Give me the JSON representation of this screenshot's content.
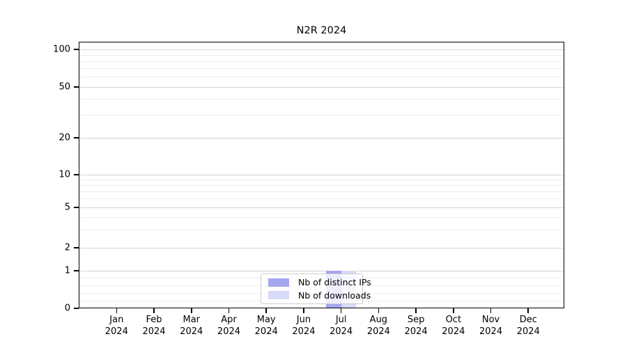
{
  "figure": {
    "background": "#ffffff"
  },
  "chart_data": {
    "type": "bar",
    "title": "N2R 2024",
    "categories": [
      "Jan 2024",
      "Feb 2024",
      "Mar 2024",
      "Apr 2024",
      "May 2024",
      "Jun 2024",
      "Jul 2024",
      "Aug 2024",
      "Sep 2024",
      "Oct 2024",
      "Nov 2024",
      "Dec 2024"
    ],
    "series": [
      {
        "name": "Nb of distinct IPs",
        "color": "#a6a6ef",
        "values": [
          0,
          0,
          0,
          0,
          0,
          0,
          1,
          0,
          0,
          0,
          0,
          0
        ]
      },
      {
        "name": "Nb of downloads",
        "color": "#d9d9f8",
        "values": [
          0,
          0,
          0,
          0,
          0,
          0,
          1,
          0,
          0,
          0,
          0,
          0
        ]
      }
    ],
    "xlabel": "",
    "ylabel": "",
    "yscale": "symlog",
    "ylim": [
      0,
      115
    ],
    "y_ticks": [
      0,
      1,
      2,
      5,
      10,
      20,
      50,
      100
    ],
    "y_minor_ticks": [
      0.2,
      0.4,
      0.6,
      0.8,
      3,
      4,
      6,
      7,
      8,
      9,
      30,
      40,
      60,
      70,
      80,
      90
    ],
    "grid": true,
    "legend_position": "lower center",
    "colors": {
      "major_grid": "#d3d3d3",
      "minor_grid": "#ececec",
      "axis": "#000000",
      "legend_border": "#cccccc"
    }
  }
}
